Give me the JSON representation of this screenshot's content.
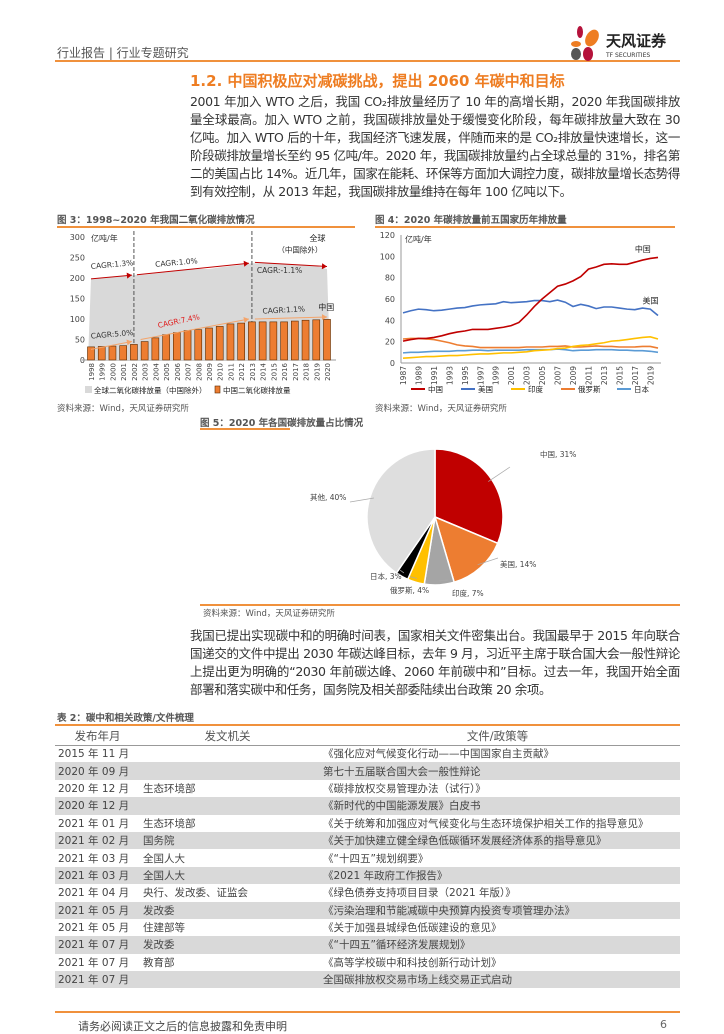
{
  "header": {
    "breadcrumb": "行业报告 | 行业专题研究",
    "logo_text": "天风证券",
    "logo_sub": "TF SECURITIES"
  },
  "section": {
    "title": "1.2. 中国积极应对减碳挑战，提出 2060 年碳中和目标",
    "para1": "2001 年加入 WTO 之后，我国 CO₂排放量经历了 10 年的高增长期，2020 年我国碳排放量全球最高。加入 WTO 之前，我国碳排放量处于缓慢变化阶段，每年碳排放量大致在 30 亿吨。加入 WTO 后的十年，我国经济飞速发展，伴随而来的是 CO₂排放量快速增长，这一阶段碳排放量增长至约 95 亿吨/年。2020 年，我国碳排放量约占全球总量的 31%，排名第二的美国占比 14%。近几年，国家在能耗、环保等方面加大调控力度，碳排放量增长态势得到有效控制，从 2013 年起，我国碳排放量维持在每年 100 亿吨以下。",
    "para2": "我国已提出实现碳中和的明确时间表，国家相关文件密集出台。我国最早于 2015 年向联合国递交的文件中提出 2030 年碳达峰目标，去年 9 月，习近平主席于联合国大会一般性辩论上提出更为明确的“2030 年前碳达峰、2060 年前碳中和”目标。过去一年，我国开始全面部署和落实碳中和任务，国务院及相关部委陆续出台政策 20 余项。"
  },
  "source_text": "资料来源：Wind，天风证券研究所",
  "chart_data": [
    {
      "type": "bar",
      "title": "图 3：1998~2020 年我国二氧化碳排放情况",
      "ylabel": "亿吨/年",
      "ylim": [
        0,
        300
      ],
      "yticks": [
        0,
        50,
        100,
        150,
        200,
        250,
        300
      ],
      "categories": [
        "1998",
        "1999",
        "2000",
        "2001",
        "2002",
        "2003",
        "2004",
        "2005",
        "2006",
        "2007",
        "2008",
        "2009",
        "2010",
        "2011",
        "2012",
        "2013",
        "2014",
        "2015",
        "2016",
        "2017",
        "2018",
        "2019",
        "2020"
      ],
      "series": [
        {
          "name": "全球二氧化碳排放量（中国除外）",
          "kind": "area",
          "color": "#d9d9d9",
          "values": [
            198,
            200,
            203,
            205,
            207,
            208,
            211,
            214,
            217,
            220,
            222,
            222,
            226,
            229,
            232,
            236,
            236,
            235,
            234,
            233,
            232,
            229,
            222
          ]
        },
        {
          "name": "中国二氧化碳排放量",
          "kind": "bar",
          "color": "#ed7d31",
          "values": [
            32,
            33,
            34,
            35,
            38,
            45,
            54,
            62,
            67,
            72,
            74,
            78,
            82,
            88,
            90,
            93,
            93,
            93,
            93,
            95,
            97,
            98,
            99
          ]
        }
      ],
      "annotations": {
        "global_label": "全球",
        "global_sub": "（中国除外）",
        "china_label": "中国",
        "cagr": [
          "CAGR:1.3%",
          "CAGR:1.0%",
          "CAGR:-1.1%",
          "CAGR:5.0%",
          "CAGR:7.4%",
          "CAGR:1.1%"
        ]
      },
      "dividers": [
        "2002",
        "2013"
      ]
    },
    {
      "type": "line",
      "title": "图 4：2020 年碳排放量前五国家历年排放量",
      "ylabel": "亿吨/年",
      "ylim": [
        0,
        120
      ],
      "yticks": [
        0,
        20,
        40,
        60,
        80,
        100,
        120
      ],
      "x": [
        1987,
        1988,
        1989,
        1990,
        1991,
        1992,
        1993,
        1994,
        1995,
        1996,
        1997,
        1998,
        1999,
        2000,
        2001,
        2002,
        2003,
        2004,
        2005,
        2006,
        2007,
        2008,
        2009,
        2010,
        2011,
        2012,
        2013,
        2014,
        2015,
        2016,
        2017,
        2018,
        2019,
        2020
      ],
      "series": [
        {
          "name": "中国",
          "color": "#c00000",
          "values": [
            20.5,
            22,
            23,
            23,
            24,
            25.5,
            27.5,
            29,
            30,
            31.5,
            31.5,
            31.5,
            32.5,
            33.5,
            35,
            38,
            45,
            53,
            60,
            66,
            72,
            74,
            77,
            81,
            88,
            90,
            92.5,
            93,
            92.5,
            92.5,
            94.5,
            96.5,
            98,
            99
          ]
        },
        {
          "name": "美国",
          "color": "#4472c4",
          "values": [
            47,
            49,
            50.5,
            50,
            49,
            49.5,
            50.5,
            51.5,
            52,
            53.5,
            54.5,
            55,
            55.5,
            57.5,
            56.5,
            57,
            57.5,
            58.5,
            58.5,
            57.5,
            59,
            57,
            53,
            55,
            53.5,
            51,
            52.5,
            52.5,
            51.5,
            50.5,
            50,
            51.5,
            50.5,
            44.5
          ]
        },
        {
          "name": "印度",
          "color": "#ffc000",
          "values": [
            4.5,
            5,
            5.5,
            6,
            6,
            6.5,
            7,
            7,
            7.5,
            8,
            8.5,
            8.5,
            9,
            9.5,
            9.5,
            10,
            10.5,
            11.5,
            12,
            12.5,
            13.5,
            14,
            15.5,
            16.5,
            17,
            18,
            19,
            20.5,
            21,
            22,
            23,
            24,
            24.5,
            22.5
          ]
        },
        {
          "name": "俄罗斯",
          "color": "#ed7d31",
          "values": [
            22.5,
            23,
            23,
            22.5,
            22,
            20.5,
            19,
            17,
            16,
            15.5,
            14.5,
            14.5,
            14.5,
            14.5,
            14.5,
            14.5,
            15,
            15,
            15,
            15.5,
            15.5,
            16,
            15,
            15,
            15.5,
            16,
            15.5,
            15.5,
            15,
            15,
            15,
            15.5,
            15.5,
            14
          ]
        },
        {
          "name": "日本",
          "color": "#5b9bd5",
          "values": [
            9.5,
            10,
            10,
            10.5,
            11,
            11,
            11,
            11.5,
            11.5,
            12,
            12,
            11.5,
            12,
            12,
            12,
            12,
            12.5,
            12.5,
            12.5,
            12.5,
            13,
            12.5,
            11.5,
            12,
            12,
            12.5,
            12.5,
            12.5,
            12,
            12,
            11.5,
            11.5,
            11,
            10
          ]
        }
      ],
      "end_labels": [
        "中国",
        "美国"
      ],
      "legend": "bottom"
    },
    {
      "type": "pie",
      "title": "图 5：2020 年各国碳排放量占比情况",
      "slices": [
        {
          "label": "中国, 31%",
          "value": 31,
          "color": "#c00000"
        },
        {
          "label": "美国, 14%",
          "value": 14,
          "color": "#ed7d31"
        },
        {
          "label": "印度, 7%",
          "value": 7,
          "color": "#a5a5a5"
        },
        {
          "label": "俄罗斯, 4%",
          "value": 4,
          "color": "#ffc000"
        },
        {
          "label": "日本, 3%",
          "value": 3,
          "color": "#000000"
        },
        {
          "label": "其他, 40%",
          "value": 40,
          "color": "#dedede"
        }
      ]
    }
  ],
  "table": {
    "caption": "表 2：碳中和相关政策/文件梳理",
    "headers": [
      "发布年月",
      "发文机关",
      "文件/政策等"
    ],
    "rows": [
      [
        "2015 年 11 月",
        "",
        "《强化应对气候变化行动——中国国家自主贡献》"
      ],
      [
        "2020 年 09 月",
        "",
        "第七十五届联合国大会一般性辩论"
      ],
      [
        "2020 年 12 月",
        "生态环境部",
        "《碳排放权交易管理办法（试行）》"
      ],
      [
        "2020 年 12 月",
        "",
        "《新时代的中国能源发展》白皮书"
      ],
      [
        "2021 年 01 月",
        "生态环境部",
        "《关于统筹和加强应对气候变化与生态环境保护相关工作的指导意见》"
      ],
      [
        "2021 年 02 月",
        "国务院",
        "《关于加快建立健全绿色低碳循环发展经济体系的指导意见》"
      ],
      [
        "2021 年 03 月",
        "全国人大",
        "《“十四五”规划纲要》"
      ],
      [
        "2021 年 03 月",
        "全国人大",
        "《2021 年政府工作报告》"
      ],
      [
        "2021 年 04 月",
        "央行、发改委、证监会",
        "《绿色债券支持项目目录（2021 年版）》"
      ],
      [
        "2021 年 05 月",
        "发改委",
        "《污染治理和节能减碳中央预算内投资专项管理办法》"
      ],
      [
        "2021 年 05 月",
        "住建部等",
        "《关于加强县城绿色低碳建设的意见》"
      ],
      [
        "2021 年 07 月",
        "发改委",
        "《“十四五”循环经济发展规划》"
      ],
      [
        "2021 年 07 月",
        "教育部",
        "《高等学校碳中和科技创新行动计划》"
      ],
      [
        "2021 年 07 月",
        "",
        "全国碳排放权交易市场上线交易正式启动"
      ]
    ]
  },
  "footer": {
    "disclaimer": "请务必阅读正文之后的信息披露和免责申明",
    "page": "6"
  }
}
